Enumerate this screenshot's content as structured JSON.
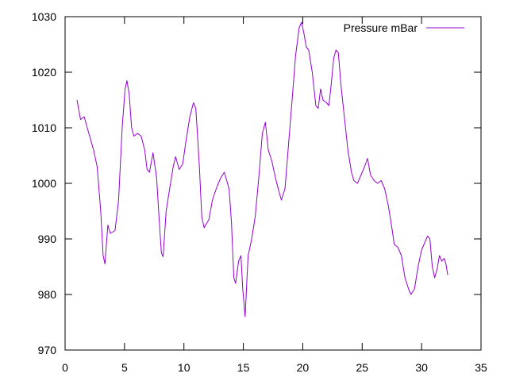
{
  "chart_data": {
    "type": "line",
    "title": "",
    "xlabel": "",
    "ylabel": "",
    "xlim": [
      0,
      35
    ],
    "ylim": [
      970,
      1030
    ],
    "x_ticks": [
      0,
      5,
      10,
      15,
      20,
      25,
      30,
      35
    ],
    "y_ticks": [
      970,
      980,
      990,
      1000,
      1010,
      1020,
      1030
    ],
    "grid": false,
    "legend_position": "top-right",
    "series": [
      {
        "name": "Pressure mBar",
        "color": "#9400d3",
        "points": [
          [
            1.0,
            1015.0
          ],
          [
            1.3,
            1011.5
          ],
          [
            1.6,
            1012.0
          ],
          [
            2.0,
            1009.0
          ],
          [
            2.4,
            1006.0
          ],
          [
            2.7,
            1003.0
          ],
          [
            3.0,
            995.0
          ],
          [
            3.2,
            987.0
          ],
          [
            3.35,
            985.5
          ],
          [
            3.6,
            992.5
          ],
          [
            3.8,
            991.0
          ],
          [
            4.2,
            991.5
          ],
          [
            4.5,
            997.0
          ],
          [
            4.8,
            1010.0
          ],
          [
            5.05,
            1017.0
          ],
          [
            5.2,
            1018.5
          ],
          [
            5.4,
            1016.0
          ],
          [
            5.6,
            1010.0
          ],
          [
            5.8,
            1008.5
          ],
          [
            6.1,
            1009.0
          ],
          [
            6.4,
            1008.5
          ],
          [
            6.7,
            1006.0
          ],
          [
            6.9,
            1002.5
          ],
          [
            7.1,
            1002.0
          ],
          [
            7.4,
            1005.5
          ],
          [
            7.7,
            1001.0
          ],
          [
            7.9,
            994.0
          ],
          [
            8.1,
            987.5
          ],
          [
            8.25,
            986.8
          ],
          [
            8.5,
            995.0
          ],
          [
            8.8,
            999.0
          ],
          [
            9.1,
            1003.0
          ],
          [
            9.3,
            1004.8
          ],
          [
            9.6,
            1002.5
          ],
          [
            9.9,
            1003.5
          ],
          [
            10.2,
            1008.0
          ],
          [
            10.5,
            1012.0
          ],
          [
            10.8,
            1014.5
          ],
          [
            11.0,
            1013.5
          ],
          [
            11.3,
            1003.0
          ],
          [
            11.5,
            994.0
          ],
          [
            11.7,
            992.0
          ],
          [
            12.1,
            993.5
          ],
          [
            12.4,
            997.0
          ],
          [
            12.8,
            999.5
          ],
          [
            13.1,
            1001.0
          ],
          [
            13.4,
            1002.0
          ],
          [
            13.6,
            1000.5
          ],
          [
            13.8,
            999.0
          ],
          [
            14.0,
            993.0
          ],
          [
            14.2,
            983.0
          ],
          [
            14.35,
            982.0
          ],
          [
            14.6,
            986.0
          ],
          [
            14.8,
            987.0
          ],
          [
            14.95,
            981.0
          ],
          [
            15.15,
            976.0
          ],
          [
            15.4,
            987.0
          ],
          [
            15.7,
            990.0
          ],
          [
            16.0,
            994.0
          ],
          [
            16.3,
            1001.0
          ],
          [
            16.6,
            1009.0
          ],
          [
            16.85,
            1011.0
          ],
          [
            17.1,
            1006.0
          ],
          [
            17.4,
            1004.0
          ],
          [
            17.7,
            1001.0
          ],
          [
            18.0,
            998.5
          ],
          [
            18.2,
            997.0
          ],
          [
            18.5,
            999.0
          ],
          [
            18.8,
            1007.0
          ],
          [
            19.1,
            1015.0
          ],
          [
            19.4,
            1023.0
          ],
          [
            19.7,
            1028.0
          ],
          [
            19.9,
            1029.0
          ],
          [
            20.1,
            1027.0
          ],
          [
            20.3,
            1024.5
          ],
          [
            20.5,
            1024.0
          ],
          [
            20.8,
            1020.0
          ],
          [
            21.1,
            1014.0
          ],
          [
            21.3,
            1013.5
          ],
          [
            21.5,
            1017.0
          ],
          [
            21.7,
            1015.0
          ],
          [
            22.0,
            1014.5
          ],
          [
            22.2,
            1014.0
          ],
          [
            22.4,
            1018.0
          ],
          [
            22.6,
            1022.5
          ],
          [
            22.8,
            1024.0
          ],
          [
            23.0,
            1023.5
          ],
          [
            23.2,
            1018.0
          ],
          [
            23.5,
            1012.0
          ],
          [
            23.8,
            1006.0
          ],
          [
            24.1,
            1002.0
          ],
          [
            24.3,
            1000.5
          ],
          [
            24.6,
            1000.0
          ],
          [
            24.9,
            1001.5
          ],
          [
            25.2,
            1003.0
          ],
          [
            25.45,
            1004.5
          ],
          [
            25.7,
            1001.5
          ],
          [
            26.0,
            1000.5
          ],
          [
            26.3,
            1000.0
          ],
          [
            26.6,
            1000.5
          ],
          [
            26.9,
            999.0
          ],
          [
            27.2,
            996.0
          ],
          [
            27.5,
            992.0
          ],
          [
            27.7,
            989.0
          ],
          [
            28.0,
            988.5
          ],
          [
            28.3,
            987.0
          ],
          [
            28.6,
            983.0
          ],
          [
            28.9,
            981.0
          ],
          [
            29.1,
            980.0
          ],
          [
            29.4,
            981.0
          ],
          [
            29.7,
            985.0
          ],
          [
            30.0,
            988.0
          ],
          [
            30.3,
            989.5
          ],
          [
            30.5,
            990.5
          ],
          [
            30.7,
            990.0
          ],
          [
            30.9,
            985.0
          ],
          [
            31.1,
            983.0
          ],
          [
            31.3,
            984.5
          ],
          [
            31.5,
            987.0
          ],
          [
            31.7,
            986.0
          ],
          [
            31.9,
            986.5
          ],
          [
            32.05,
            985.5
          ],
          [
            32.2,
            983.5
          ]
        ]
      }
    ]
  }
}
